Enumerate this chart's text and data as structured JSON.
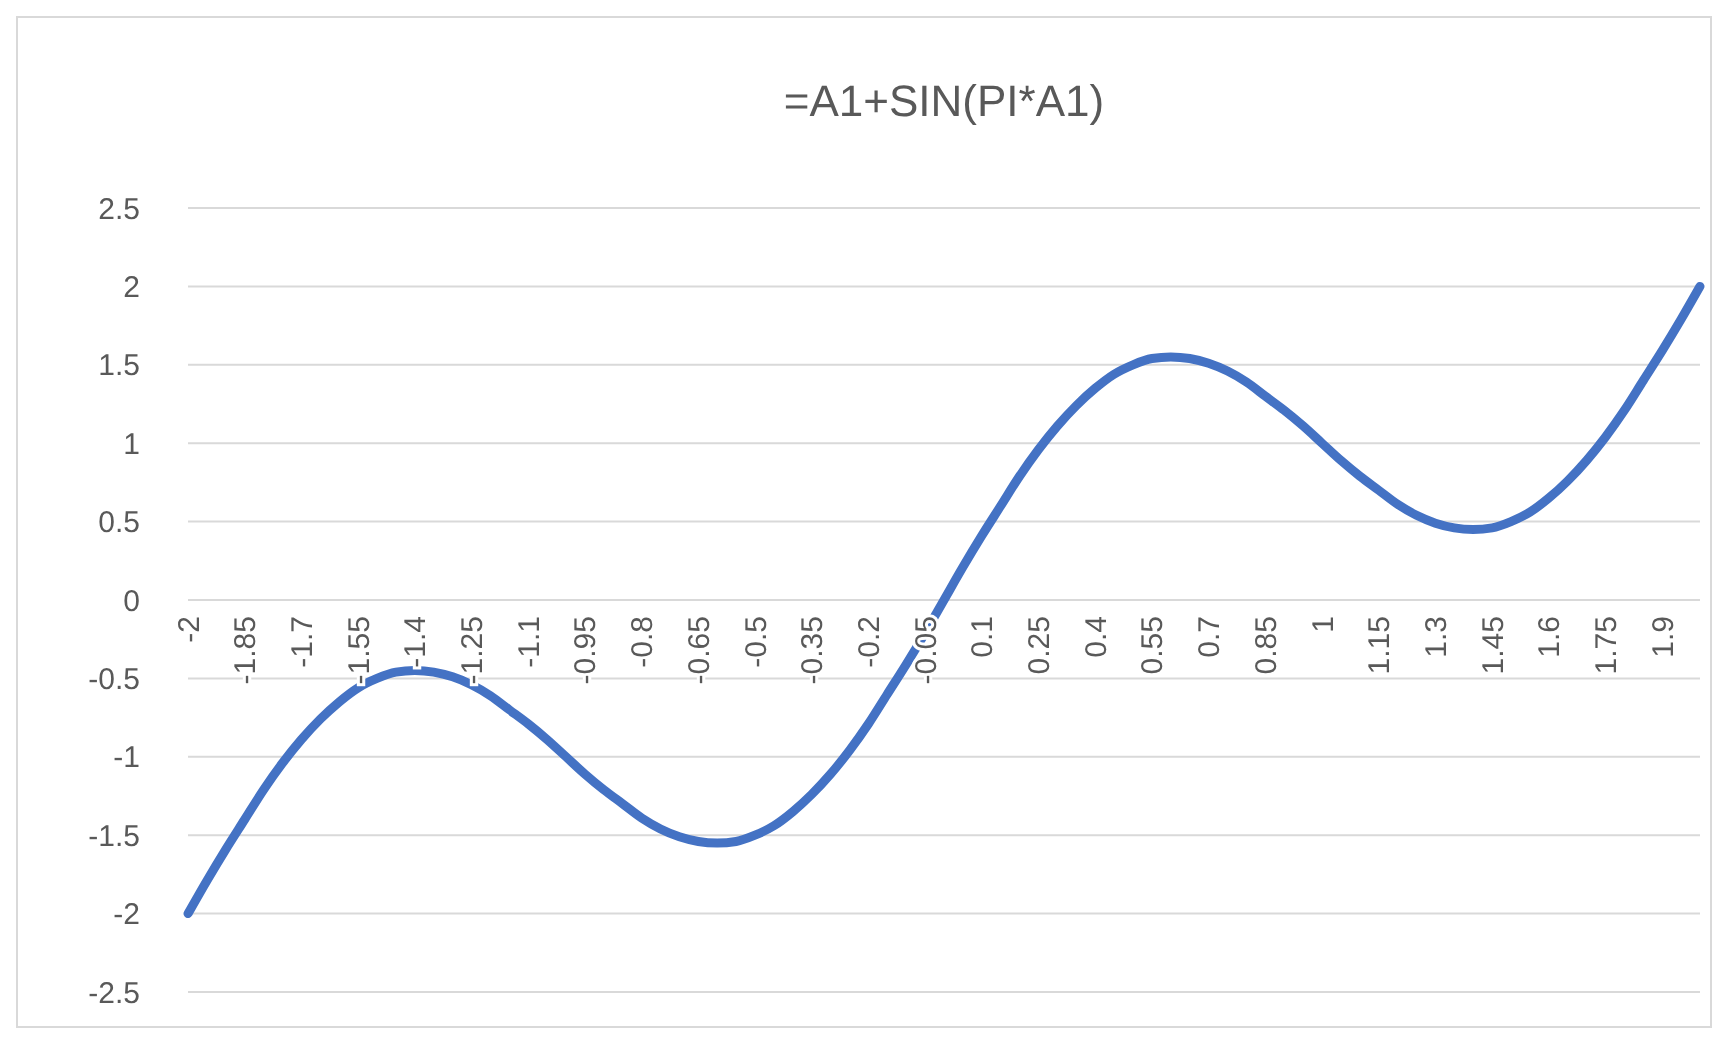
{
  "chart_data": {
    "type": "line",
    "title": "=A1+SIN(PI*A1)",
    "categories": [
      "-2",
      null,
      null,
      "-1.85",
      null,
      null,
      "-1.7",
      null,
      null,
      "-1.55",
      null,
      null,
      "-1.4",
      null,
      null,
      "-1.25",
      null,
      null,
      "-1.1",
      null,
      null,
      "-0.95",
      null,
      null,
      "-0.8",
      null,
      null,
      "-0.65",
      null,
      null,
      "-0.5",
      null,
      null,
      "-0.35",
      null,
      null,
      "-0.2",
      null,
      null,
      "-0.05",
      null,
      null,
      "0.1",
      null,
      null,
      "0.25",
      null,
      null,
      "0.4",
      null,
      null,
      "0.55",
      null,
      null,
      "0.7",
      null,
      null,
      "0.85",
      null,
      null,
      "1",
      null,
      null,
      "1.15",
      null,
      null,
      "1.3",
      null,
      null,
      "1.45",
      null,
      null,
      "1.6",
      null,
      null,
      "1.75",
      null,
      null,
      "1.9",
      null,
      null
    ],
    "series": [
      {
        "color": "#4472c4",
        "values": [
          -2,
          -1.79,
          -1.59,
          -1.4,
          -1.21,
          -1.04,
          -0.89,
          -0.76,
          -0.65,
          -0.56,
          -0.5,
          -0.46,
          -0.45,
          -0.46,
          -0.49,
          -0.54,
          -0.61,
          -0.7,
          -0.79,
          -0.89,
          -1,
          -1.11,
          -1.21,
          -1.3,
          -1.39,
          -1.46,
          -1.51,
          -1.54,
          -1.55,
          -1.54,
          -1.5,
          -1.44,
          -1.35,
          -1.24,
          -1.11,
          -0.96,
          -0.79,
          -0.6,
          -0.41,
          -0.21,
          0,
          0.21,
          0.41,
          0.6,
          0.79,
          0.96,
          1.11,
          1.24,
          1.35,
          1.44,
          1.5,
          1.54,
          1.55,
          1.54,
          1.51,
          1.46,
          1.39,
          1.3,
          1.21,
          1.11,
          1,
          0.89,
          0.79,
          0.7,
          0.61,
          0.54,
          0.49,
          0.46,
          0.45,
          0.46,
          0.5,
          0.56,
          0.65,
          0.76,
          0.89,
          1.04,
          1.21,
          1.4,
          1.59,
          1.79,
          2
        ]
      }
    ],
    "ylim": [
      -2.5,
      2.5
    ],
    "yticks": [
      2.5,
      2,
      1.5,
      1,
      0.5,
      0,
      -0.5,
      -1,
      -1.5,
      -2,
      -2.5
    ],
    "grid": "y",
    "marker": "none",
    "line_style": "solid"
  }
}
